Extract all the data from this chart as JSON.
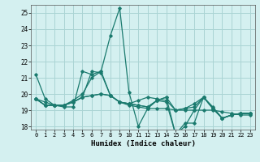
{
  "title": "",
  "xlabel": "Humidex (Indice chaleur)",
  "ylabel": "",
  "background_color": "#d4f0f0",
  "grid_color": "#aad4d4",
  "line_color": "#1a7a6e",
  "xlim": [
    -0.5,
    23.5
  ],
  "ylim": [
    17.8,
    25.5
  ],
  "yticks": [
    18,
    19,
    20,
    21,
    22,
    23,
    24,
    25
  ],
  "xticks": [
    0,
    1,
    2,
    3,
    4,
    5,
    6,
    7,
    8,
    9,
    10,
    11,
    12,
    13,
    14,
    15,
    16,
    17,
    18,
    19,
    20,
    21,
    22,
    23
  ],
  "series": [
    [
      21.2,
      19.7,
      19.3,
      19.2,
      19.2,
      21.4,
      21.2,
      21.4,
      23.6,
      25.3,
      20.1,
      18.0,
      19.1,
      19.6,
      19.5,
      17.5,
      18.2,
      18.2,
      19.8,
      19.1,
      18.5,
      18.7,
      18.8,
      18.8
    ],
    [
      19.7,
      19.3,
      19.3,
      19.3,
      19.5,
      19.8,
      19.9,
      20.0,
      19.9,
      19.5,
      19.3,
      19.2,
      19.1,
      19.1,
      19.1,
      19.0,
      19.0,
      19.0,
      19.0,
      19.0,
      18.9,
      18.8,
      18.7,
      18.7
    ],
    [
      19.7,
      19.3,
      19.3,
      19.3,
      19.5,
      19.8,
      21.4,
      21.3,
      19.9,
      19.5,
      19.4,
      19.6,
      19.8,
      19.7,
      19.6,
      19.0,
      19.1,
      19.2,
      19.8,
      19.2,
      18.5,
      18.7,
      18.8,
      18.8
    ],
    [
      19.7,
      19.3,
      19.3,
      19.3,
      19.5,
      19.8,
      19.9,
      20.0,
      19.9,
      19.5,
      19.4,
      19.3,
      19.2,
      19.6,
      19.8,
      17.5,
      18.0,
      19.0,
      19.8,
      19.1,
      18.5,
      18.7,
      18.8,
      18.8
    ],
    [
      19.7,
      19.5,
      19.3,
      19.3,
      19.6,
      20.0,
      21.0,
      21.4,
      19.9,
      19.5,
      19.4,
      19.3,
      19.2,
      19.6,
      19.8,
      19.0,
      19.1,
      19.4,
      19.8,
      19.1,
      18.5,
      18.7,
      18.8,
      18.8
    ]
  ]
}
